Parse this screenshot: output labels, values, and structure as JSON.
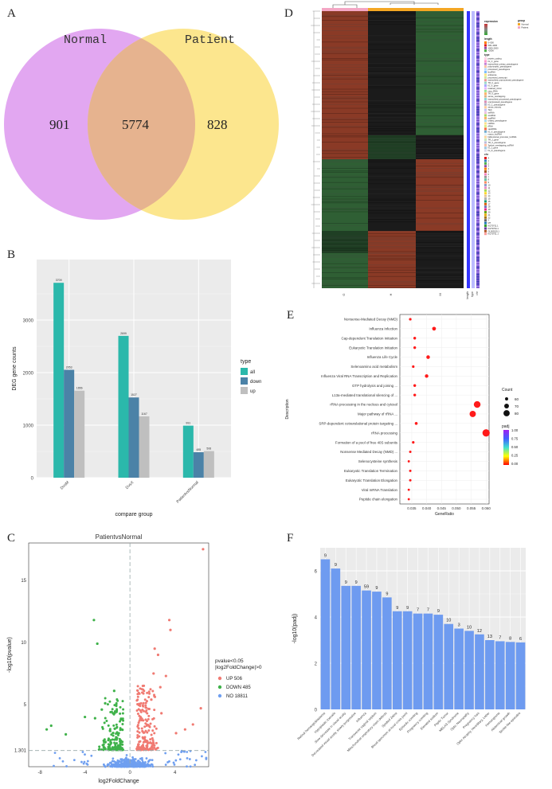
{
  "panel_labels": {
    "a": "A",
    "b": "B",
    "c": "C",
    "d": "D",
    "e": "E",
    "f": "F"
  },
  "chart_data": [
    {
      "type": "venn",
      "sets": [
        "Normal",
        "Patient"
      ],
      "regions": {
        "left_only": 901,
        "intersection": 5774,
        "right_only": 828
      },
      "colors": {
        "left": "#dd98ef",
        "right": "#fbe27a",
        "overlap": "#e6b38f"
      }
    },
    {
      "type": "bar",
      "categories": [
        "DvsM",
        "DvsX",
        "PatientvsNormal"
      ],
      "series": [
        {
          "name": "all",
          "values": [
            3709,
            2699,
            991
          ],
          "color": "#2bb8ab"
        },
        {
          "name": "down",
          "values": [
            2053,
            1527,
            485
          ],
          "color": "#4b82a7"
        },
        {
          "name": "up",
          "values": [
            1656,
            1167,
            506
          ],
          "color": "#bfbfbf"
        }
      ],
      "xlabel": "compare group",
      "ylabel": "DEG gene counts",
      "ylim": [
        0,
        4000
      ],
      "yticks": [
        0,
        1000,
        2000,
        3000
      ],
      "legend_title": "type",
      "legend_position": "right"
    },
    {
      "type": "scatter",
      "title": "PatientvsNormal",
      "xlabel": "log2FoldChange",
      "ylabel": "-log10(pvalue)",
      "xlim": [
        -9,
        7
      ],
      "ylim": [
        0,
        18
      ],
      "xticks": [
        -8,
        -4,
        0,
        4,
        8
      ],
      "yticks": [
        "1.301",
        "5",
        "10",
        "15"
      ],
      "threshold_y": 1.301,
      "legend_title": "pvalue<0.05\n|log2FoldChange|>0",
      "groups": [
        {
          "name": "UP 506",
          "color": "#f07a72",
          "highlight": [
            [
              6.5,
              17.5
            ],
            [
              3.5,
              11.8
            ],
            [
              3.6,
              11
            ],
            [
              2.2,
              9.5
            ],
            [
              2.5,
              9
            ],
            [
              2.1,
              7.5
            ],
            [
              3.2,
              7.3
            ],
            [
              2.7,
              6.4
            ],
            [
              6.3,
              4.7
            ],
            [
              5.6,
              3.4
            ],
            [
              4.9,
              3.0
            ],
            [
              4.1,
              2.7
            ],
            [
              1.9,
              5.4
            ],
            [
              2.8,
              4.3
            ]
          ]
        },
        {
          "name": "DOWN 485",
          "color": "#3fb24a",
          "highlight": [
            [
              -3.2,
              11.8
            ],
            [
              -2.9,
              9.9
            ],
            [
              -1.4,
              6.1
            ],
            [
              -2.2,
              5.1
            ],
            [
              -4.0,
              4.0
            ],
            [
              -7.0,
              3.3
            ],
            [
              -7.4,
              3.0
            ],
            [
              -5.7,
              2.6
            ],
            [
              -2.5,
              4.6
            ],
            [
              -3.1,
              3.9
            ],
            [
              -1.5,
              4.3
            ]
          ]
        },
        {
          "name": "NO 18811",
          "color": "#6f9ff0"
        }
      ]
    },
    {
      "type": "heatmap",
      "columns": [
        "G",
        "H",
        "M"
      ],
      "group_bar_colors": [
        "#f4a6c4",
        "#f4a623"
      ],
      "annotation_labels": [
        "length",
        "type",
        "chr"
      ],
      "legend": {
        "expression": {
          "title": "expression",
          "colors": [
            "#cc3333",
            "#888888",
            "#33aa33"
          ]
        },
        "group": {
          "title": "group",
          "items": [
            {
              "label": "Normal",
              "color": "#f4a623"
            },
            {
              "label": "Patient",
              "color": "#f4a6c4"
            }
          ]
        },
        "length": {
          "title": "length",
          "items": [
            {
              "label": "0~500",
              "color": "#ff7f00"
            },
            {
              "label": "500~1000",
              "color": "#e31a1c"
            },
            {
              "label": "1000~2000",
              "color": "#984ea3"
            },
            {
              "label": ">2000",
              "color": "#4daf4a"
            }
          ]
        },
        "type": {
          "title": "type",
          "items": [
            {
              "label": "protein_coding",
              "color": "#ffd3e6"
            },
            {
              "label": "IG_C_gene",
              "color": "#ff99cc"
            },
            {
              "label": "transcribed_unitary_pseudogene",
              "color": "#c586d6"
            },
            {
              "label": "polymorphic_pseudogene",
              "color": "#f7c3a1"
            },
            {
              "label": "processed_pseudogene",
              "color": "#b3d9ff"
            },
            {
              "label": "lincRNA",
              "color": "#7fbfff"
            },
            {
              "label": "antisense",
              "color": "#ffe680"
            },
            {
              "label": "processed_transcript",
              "color": "#cde6a3"
            },
            {
              "label": "transcribed_unprocessed_pseudogene",
              "color": "#f29a9a"
            },
            {
              "label": "TR_C_gene",
              "color": "#9ad7c8"
            },
            {
              "label": "IG_V_gene",
              "color": "#aaaaff"
            },
            {
              "label": "retained_intron",
              "color": "#e6b3ff"
            },
            {
              "label": "misc_RNA",
              "color": "#99e699"
            },
            {
              "label": "TR_V_gene",
              "color": "#ffb366"
            },
            {
              "label": "sense_overlapping",
              "color": "#d9b38c"
            },
            {
              "label": "transcribed_processed_pseudogene",
              "color": "#8cd9d9"
            },
            {
              "label": "unprocessed_pseudogene",
              "color": "#d98cb3"
            },
            {
              "label": "IG_C_pseudogene",
              "color": "#b3b3cc"
            },
            {
              "label": "sense_intronic",
              "color": "#ffcc99"
            },
            {
              "label": "TEC",
              "color": "#c2c2f0"
            },
            {
              "label": "snRNA",
              "color": "#f0c2e0"
            },
            {
              "label": "snoRNA",
              "color": "#a6d96a"
            },
            {
              "label": "scaRNA",
              "color": "#fdae61"
            },
            {
              "label": "unitary_pseudogene",
              "color": "#abd9e9"
            },
            {
              "label": "miRNA",
              "color": "#fee08b"
            },
            {
              "label": "rRNA",
              "color": "#d9ef8b"
            },
            {
              "label": "vaultRNA",
              "color": "#f46d43"
            },
            {
              "label": "IG_V_pseudogene",
              "color": "#74add1"
            },
            {
              "label": "macro_lncRNA",
              "color": "#e0f3f8"
            },
            {
              "label": "bidirectional_promoter_lncRNA",
              "color": "#fdd49e"
            },
            {
              "label": "TR_J_gene",
              "color": "#c7e9c0"
            },
            {
              "label": "TR_V_pseudogene",
              "color": "#bcbddc"
            },
            {
              "label": "3prime_overlapping_ncRNA",
              "color": "#fcbba1"
            },
            {
              "label": "IG_J_gene",
              "color": "#9ecae1"
            },
            {
              "label": "IG_D_pseudogene",
              "color": "#dadaeb"
            }
          ]
        },
        "chr": {
          "title": "chr",
          "items": [
            {
              "label": "X",
              "color": "#e41a1c"
            },
            {
              "label": "1",
              "color": "#377eb8"
            },
            {
              "label": "2",
              "color": "#4daf4a"
            },
            {
              "label": "3",
              "color": "#984ea3"
            },
            {
              "label": "4",
              "color": "#ff7f00"
            },
            {
              "label": "5",
              "color": "#a65628"
            },
            {
              "label": "6",
              "color": "#f781bf"
            },
            {
              "label": "7",
              "color": "#999999"
            },
            {
              "label": "8",
              "color": "#66c2a5"
            },
            {
              "label": "9",
              "color": "#fc8d62"
            },
            {
              "label": "10",
              "color": "#8da0cb"
            },
            {
              "label": "11",
              "color": "#e78ac3"
            },
            {
              "label": "12",
              "color": "#a6d854"
            },
            {
              "label": "13",
              "color": "#ffd92f"
            },
            {
              "label": "14",
              "color": "#e5c494"
            },
            {
              "label": "15",
              "color": "#b3b3b3"
            },
            {
              "label": "16",
              "color": "#1b9e77"
            },
            {
              "label": "17",
              "color": "#d95f02"
            },
            {
              "label": "18",
              "color": "#7570b3"
            },
            {
              "label": "19",
              "color": "#e7298a"
            },
            {
              "label": "20",
              "color": "#66a61e"
            },
            {
              "label": "21",
              "color": "#e6ab02"
            },
            {
              "label": "22",
              "color": "#a6761d"
            },
            {
              "label": "Y",
              "color": "#666666"
            },
            {
              "label": "MT",
              "color": "#1f78b4"
            },
            {
              "label": "KI270711.1",
              "color": "#33a02c"
            },
            {
              "label": "KI270734.1",
              "color": "#6a3d9a"
            },
            {
              "label": "GL000219.1",
              "color": "#b15928"
            },
            {
              "label": "KI270721.1",
              "color": "#fb9a99"
            }
          ]
        }
      }
    },
    {
      "type": "scatter",
      "xlabel": "GeneRatio",
      "ylabel": "Description",
      "xlim": [
        0.031,
        0.061
      ],
      "xticks": [
        0.035,
        0.04,
        0.045,
        0.05,
        0.055,
        0.06
      ],
      "xtick_labels": [
        "0.035",
        "0.040",
        "0.045",
        "0.050",
        "0.055",
        "0.060"
      ],
      "categories": [
        "Nonsense-Mediated Decay (NMD)",
        "Influenza Infection",
        "Cap-dependent Translation Initiation",
        "Eukaryotic Translation Initiation",
        "Influenza Life Cycle",
        "Selenoamino acid metabolism",
        "Influenza Viral RNA Transcription and Replication",
        "GTP hydrolysis and joining ...",
        "L13a-mediated translational silencing of ...",
        "rRNA processing in the nucleus and cytosol",
        "Major pathway of rRNA ...",
        "SRP-dependent cotranslational protein targeting ...",
        "rRNA processing",
        "Formation of a pool of free 40S subunits",
        "Nonsense Mediated Decay (NMD) ...",
        "Selenocysteine synthesis",
        "Eukaryotic Translation Termination",
        "Eukaryotic Translation Elongation",
        "Viral mRNA Translation",
        "Peptide chain elongation"
      ],
      "gene_ratio": [
        0.0345,
        0.0425,
        0.036,
        0.036,
        0.0405,
        0.0355,
        0.04,
        0.036,
        0.036,
        0.057,
        0.0555,
        0.0365,
        0.06,
        0.0355,
        0.0345,
        0.034,
        0.0345,
        0.0345,
        0.034,
        0.034
      ],
      "count": [
        56,
        64,
        57,
        57,
        63,
        56,
        62,
        57,
        57,
        83,
        80,
        58,
        87,
        56,
        55,
        54,
        55,
        55,
        54,
        54
      ],
      "size_legend": {
        "title": "Count",
        "values": [
          60,
          70,
          80
        ]
      },
      "color_legend": {
        "title": "padj",
        "ticks": [
          "1.00",
          "0.75",
          "0.50",
          "0.25",
          "0.00"
        ],
        "colors": [
          "#a020f0",
          "#4060ff",
          "#40e0d0",
          "#ffff00",
          "#ff0000"
        ]
      },
      "point_color": "#ff1a1a"
    },
    {
      "type": "bar",
      "ylabel": "-log10(padj)",
      "ylim": [
        0,
        7
      ],
      "yticks": [
        0,
        2,
        4,
        6
      ],
      "color": "#6e9bf0",
      "categories": [
        "Retinal hemangioblastoma",
        "Hypoplastic toenails",
        "Slow decrease in visual acuity",
        "Decreased visual acuity, slowly progressive",
        "Influenza",
        "Transverse vaginal septum",
        "Mitochondrial respiratory chain defects",
        "Spotted Zebra",
        "Blood specimen at local crisis point",
        "Episodic vomiting",
        "Pregnancy vomiting",
        "Elevated sodium",
        "Peptic Tumor",
        "MELAS Syndrome",
        "Optic Neuropathy",
        "Pregnancy loss",
        "Optic Atrophy, Hereditary, Leber",
        "Hemangioma",
        "Abdominal growth",
        "Stroke-like episodes"
      ],
      "values": [
        6.5,
        6.1,
        5.35,
        5.35,
        5.15,
        5.1,
        4.85,
        4.25,
        4.25,
        4.15,
        4.15,
        4.1,
        3.7,
        3.5,
        3.4,
        3.25,
        3.0,
        2.95,
        2.92,
        2.9
      ],
      "labels": [
        "9",
        "9",
        "9",
        "9",
        "59",
        "9",
        "9",
        "9",
        "9",
        "7",
        "7",
        "9",
        "10",
        "3",
        "10",
        "12",
        "13",
        "7",
        "8",
        "6"
      ]
    }
  ]
}
